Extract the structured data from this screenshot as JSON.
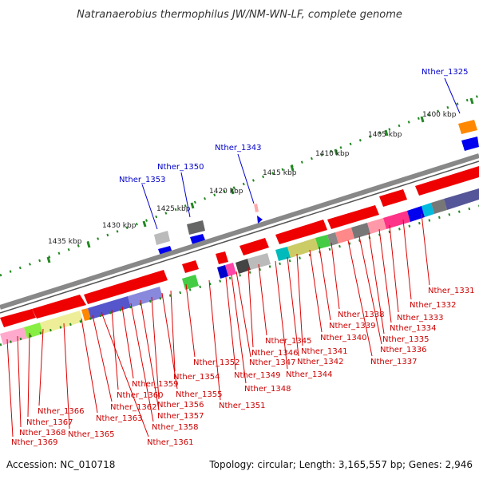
{
  "title": "Natranaerobius thermophilus JW/NM-WN-LF, complete genome",
  "footer": {
    "accession": "Accession: NC_010718",
    "summary": "Topology: circular; Length: 3,165,557 bp; Genes: 2,946"
  },
  "kbp_ticks": [
    "1400 kbp",
    "1405 kbp",
    "1410 kbp",
    "1415 kbp",
    "1420 kbp",
    "1425 kbp",
    "1430 kbp",
    "1435 kbp"
  ],
  "top_labels": [
    "Nther_1325",
    "Nther_1343",
    "Nther_1350",
    "Nther_1353"
  ],
  "bottom_labels": [
    "Nther_1331",
    "Nther_1332",
    "Nther_1333",
    "Nther_1334",
    "Nther_1335",
    "Nther_1336",
    "Nther_1337",
    "Nther_1338",
    "Nther_1339",
    "Nther_1340",
    "Nther_1341",
    "Nther_1342",
    "Nther_1344",
    "Nther_1345",
    "Nther_1346",
    "Nther_1347",
    "Nther_1348",
    "Nther_1349",
    "Nther_1351",
    "Nther_1352",
    "Nther_1354",
    "Nther_1355",
    "Nther_1356",
    "Nther_1357",
    "Nther_1358",
    "Nther_1359",
    "Nther_1360",
    "Nther_1361",
    "Nther_1362",
    "Nther_1363",
    "Nther_1365",
    "Nther_1366",
    "Nther_1367",
    "Nther_1368",
    "Nther_1369"
  ],
  "colors": {
    "forward": "#ee0000",
    "reverse": "#0000ee",
    "backbone": "#888888",
    "ticks": "#228822"
  }
}
